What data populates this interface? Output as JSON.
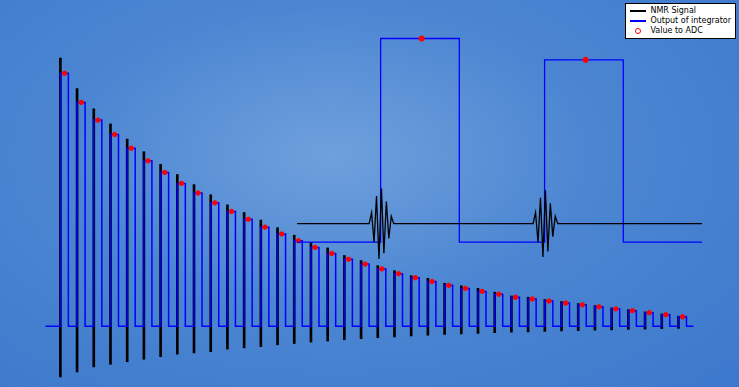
{
  "chart_data": [
    {
      "type": "line",
      "tick_labels": false,
      "grid": false,
      "legend": "upper right",
      "xlim": [
        0.11,
        38.9
      ],
      "ylim": [
        -22,
        127
      ],
      "series": [
        {
          "name": "NMR Signal",
          "color": "#000000",
          "type": "bar",
          "x": [
            1,
            2,
            3,
            4,
            5,
            6,
            7,
            8,
            9,
            10,
            11,
            12,
            13,
            14,
            15,
            16,
            17,
            18,
            19,
            20,
            21,
            22,
            23,
            24,
            25,
            26,
            27,
            28,
            29,
            30,
            31,
            32,
            33,
            34,
            35,
            36,
            37,
            38
          ],
          "values": [
            [
              -20,
              106
            ],
            [
              -18,
              94
            ],
            [
              -16,
              86
            ],
            [
              -15,
              80
            ],
            [
              -14,
              74
            ],
            [
              -13,
              69
            ],
            [
              -12,
              64
            ],
            [
              -11,
              60
            ],
            [
              -10.5,
              56
            ],
            [
              -10,
              52
            ],
            [
              -9,
              48
            ],
            [
              -8.5,
              45
            ],
            [
              -8,
              42
            ],
            [
              -7.3,
              39
            ],
            [
              -6.8,
              36
            ],
            [
              -6.2,
              33
            ],
            [
              -5.8,
              31
            ],
            [
              -5.3,
              28
            ],
            [
              -4.9,
              26
            ],
            [
              -4.5,
              24
            ],
            [
              -4.2,
              22
            ],
            [
              -3.8,
              20
            ],
            [
              -3.5,
              19
            ],
            [
              -3.2,
              17
            ],
            [
              -3,
              16
            ],
            [
              -2.8,
              15
            ],
            [
              -2.5,
              13.5
            ],
            [
              -2.3,
              12
            ],
            [
              -2.2,
              11.5
            ],
            [
              -2,
              10.6
            ],
            [
              -1.8,
              9.8
            ],
            [
              -1.7,
              9
            ],
            [
              -1.5,
              8.2
            ],
            [
              -1.4,
              7.3
            ],
            [
              -1.2,
              6.6
            ],
            [
              -1.1,
              5.7
            ],
            [
              -0.9,
              4.9
            ],
            [
              -0.8,
              4
            ]
          ]
        },
        {
          "name": "Output of integrator",
          "color": "#0000ff",
          "type": "line",
          "line_style": "stepped",
          "x": [
            0.11,
            1,
            1.48,
            2,
            2.48,
            3,
            3.48,
            4,
            4.48,
            5,
            5.48,
            6,
            6.48,
            7,
            7.48,
            8,
            8.48,
            9,
            9.48,
            10,
            10.48,
            11,
            11.48,
            12,
            12.48,
            13,
            13.48,
            14,
            14.48,
            15,
            15.48,
            16,
            16.48,
            17,
            17.48,
            18,
            18.48,
            19,
            19.48,
            20,
            20.48,
            21,
            21.48,
            22,
            22.48,
            23,
            23.48,
            24,
            24.48,
            25,
            25.48,
            26,
            26.48,
            27,
            27.48,
            28,
            28.48,
            29,
            29.48,
            30,
            30.48,
            31,
            31.48,
            32,
            32.48,
            33,
            33.48,
            34,
            34.48,
            35,
            35.48,
            36,
            36.48,
            37,
            37.48,
            38,
            38.48,
            38.9
          ],
          "values": [
            0,
            100,
            0,
            88.5,
            0,
            81.5,
            0,
            75.8,
            0,
            70.4,
            0,
            65.4,
            0,
            60.8,
            0,
            56.5,
            0,
            52.7,
            0,
            48.8,
            0,
            45.4,
            0,
            42.3,
            0,
            39.2,
            0,
            36.5,
            0,
            33.8,
            0,
            31.2,
            0,
            28.8,
            0,
            26.5,
            0,
            24.6,
            0,
            22.7,
            0,
            20.8,
            0,
            19.2,
            0,
            17.7,
            0,
            16.2,
            0,
            15,
            0,
            13.8,
            0,
            12.7,
            0,
            11.5,
            0,
            10.8,
            0,
            10,
            0,
            9.2,
            0,
            8.5,
            0,
            7.7,
            0,
            6.9,
            0,
            6.2,
            0,
            5.4,
            0,
            4.6,
            0,
            3.8,
            0,
            0
          ]
        },
        {
          "name": "Value to ADC",
          "color": "#ff0000",
          "type": "scatter",
          "marker": "circle",
          "x": [
            1.25,
            2.25,
            3.25,
            4.25,
            5.25,
            6.25,
            7.25,
            8.25,
            9.25,
            10.25,
            11.25,
            12.25,
            13.25,
            14.25,
            15.25,
            16.25,
            17.25,
            18.25,
            19.25,
            20.25,
            21.25,
            22.25,
            23.25,
            24.25,
            25.25,
            26.25,
            27.25,
            28.25,
            29.25,
            30.25,
            31.25,
            32.25,
            33.25,
            34.25,
            35.25,
            36.25,
            37.25,
            38.25
          ],
          "values": [
            100,
            88.5,
            81.5,
            75.8,
            70.4,
            65.4,
            60.8,
            56.5,
            52.7,
            48.8,
            45.4,
            42.3,
            39.2,
            36.5,
            33.8,
            31.2,
            28.8,
            26.5,
            24.6,
            22.7,
            20.8,
            19.2,
            17.7,
            16.2,
            15,
            13.8,
            12.7,
            11.5,
            10.8,
            10,
            9.2,
            8.5,
            7.7,
            6.9,
            6.2,
            5.4,
            4.6,
            3.8
          ]
        }
      ]
    },
    {
      "type": "line",
      "tick_labels": false,
      "grid": false,
      "xlim": [
        0.49,
        2.96
      ],
      "ylim": [
        -25,
        110
      ],
      "series": [
        {
          "name": "NMR Signal",
          "color": "#000000",
          "type": "line",
          "x": [
            0.49,
            0.93,
            0.945,
            0.96,
            0.975,
            0.99,
            1.005,
            1.02,
            1.035,
            1.05,
            1.065,
            1.08,
            1.93,
            1.945,
            1.96,
            1.975,
            1.99,
            2.005,
            2.02,
            2.035,
            2.05,
            2.065,
            2.08,
            2.96
          ],
          "values": [
            0,
            0,
            6,
            -10,
            15,
            -19,
            19,
            -16,
            12,
            -8,
            4,
            0,
            0,
            6,
            -10,
            14,
            -18,
            18,
            -15,
            11,
            -7,
            4,
            0,
            0
          ]
        },
        {
          "name": "Output of integrator",
          "color": "#0000ff",
          "type": "line",
          "line_style": "stepped",
          "x": [
            0.49,
            1,
            1.48,
            2,
            2.48,
            2.96
          ],
          "values": [
            -10,
            100,
            -10,
            88.5,
            -10,
            -10
          ]
        },
        {
          "name": "Value to ADC",
          "color": "#ff0000",
          "type": "scatter",
          "marker": "circle",
          "x": [
            1.25,
            2.25
          ],
          "values": [
            100,
            88.5
          ]
        }
      ]
    }
  ]
}
